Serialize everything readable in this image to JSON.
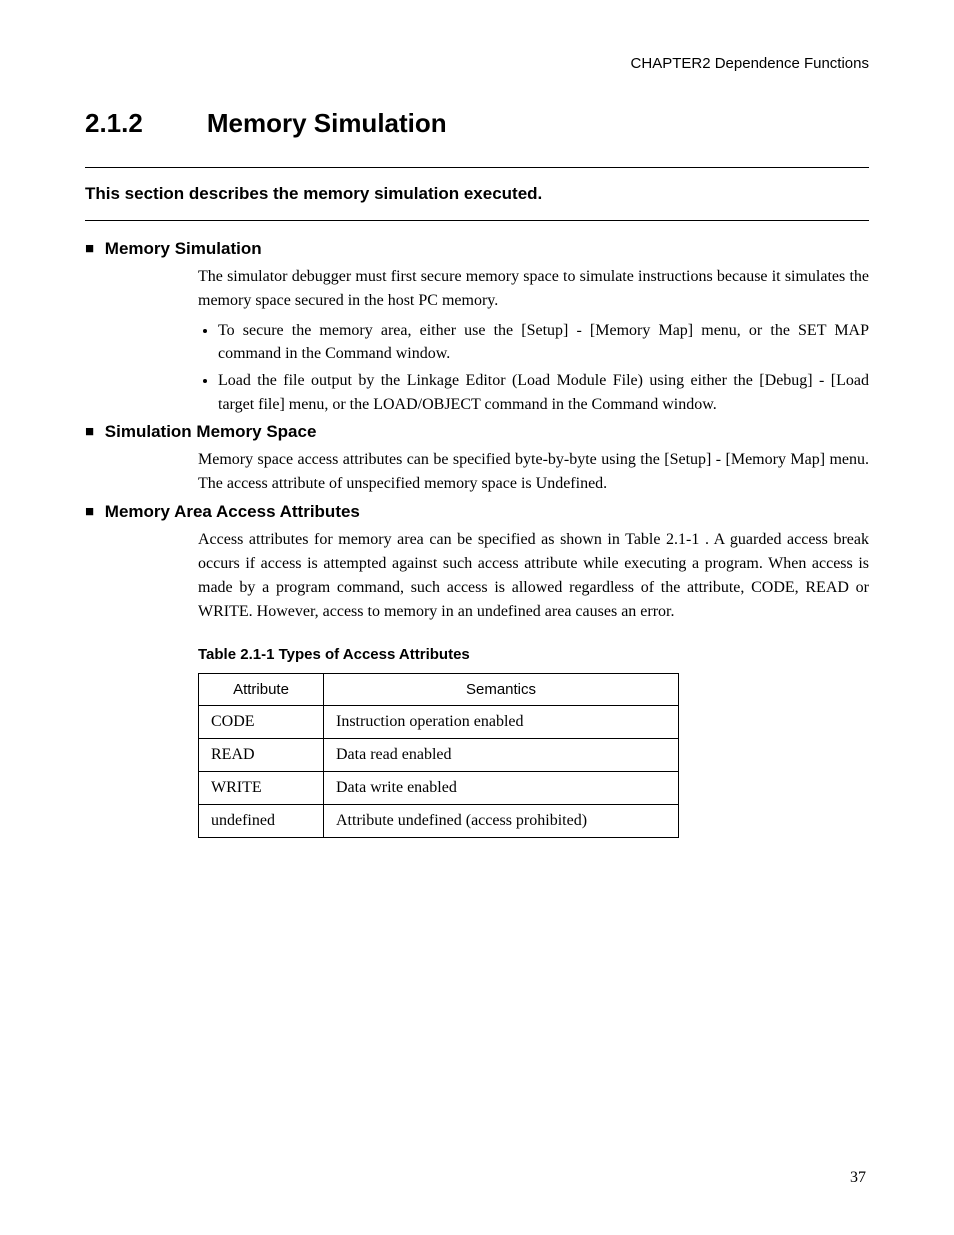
{
  "header": {
    "chapter_label": "CHAPTER2  Dependence Functions"
  },
  "section": {
    "number": "2.1.2",
    "title": "Memory Simulation",
    "intro": "This section describes the memory simulation executed."
  },
  "sub1": {
    "heading": "Memory Simulation",
    "para": "The simulator debugger must first secure memory space to simulate instructions because it simulates the memory space secured in the host PC memory.",
    "bullets": [
      "To secure the memory area, either use the [Setup] - [Memory Map] menu, or the SET MAP command in the Command window.",
      "Load the file output by the Linkage Editor (Load Module File) using either the [Debug] - [Load target file] menu, or the LOAD/OBJECT command in the Command window."
    ]
  },
  "sub2": {
    "heading": "Simulation Memory Space",
    "para": "Memory space access attributes can be specified byte-by-byte using the [Setup] - [Memory Map] menu. The access attribute of unspecified memory space is Undefined."
  },
  "sub3": {
    "heading": "Memory Area Access Attributes",
    "para": "Access attributes for memory area can be specified as shown in Table 2.1-1 . A guarded access break occurs if access is attempted against such access attribute while executing a program.   When access is made by a program command, such access is allowed regardless of the attribute, CODE, READ or WRITE. However, access to memory in an undefined area causes an error."
  },
  "table": {
    "caption": "Table 2.1-1  Types of Access Attributes",
    "columns": [
      "Attribute",
      "Semantics"
    ],
    "rows": [
      [
        "CODE",
        "Instruction operation enabled"
      ],
      [
        "READ",
        "Data read enabled"
      ],
      [
        "WRITE",
        "Data write enabled"
      ],
      [
        "undefined",
        "Attribute undefined (access prohibited)"
      ]
    ]
  },
  "page_number": "37"
}
